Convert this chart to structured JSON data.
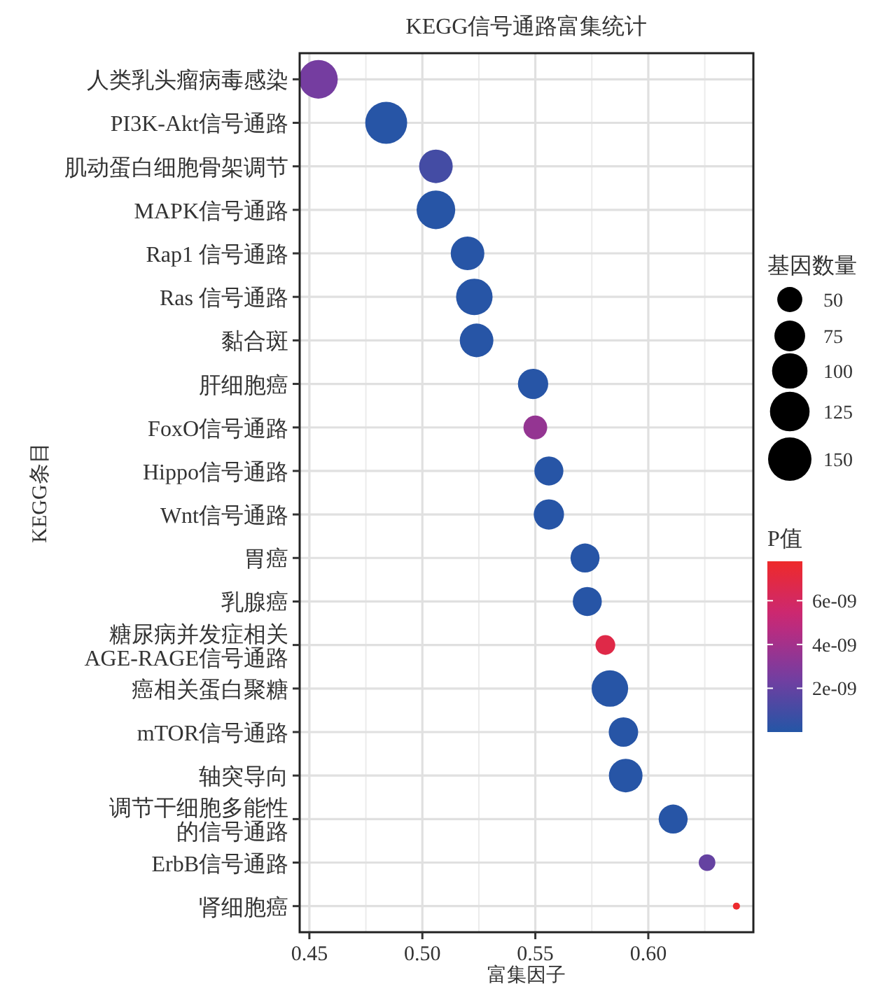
{
  "chart_data": {
    "type": "bubble",
    "orientation": "horizontal",
    "title": "KEGG信号通路富集统计",
    "xlabel": "富集因子",
    "ylabel": "KEGG条目",
    "legend_title": "基因数量",
    "clabel": "P值",
    "grid": true,
    "categories": [
      "人类乳头瘤病毒感染",
      "PI3K-Akt信号通路",
      "肌动蛋白细胞骨架调节",
      "MAPK信号通路",
      "Rap1 信号通路",
      "Ras 信号通路",
      "黏合斑",
      "肝细胞癌",
      "FoxO信号通路",
      "Hippo信号通路",
      "Wnt信号通路",
      "胃癌",
      "乳腺癌",
      "糖尿病并发症相关AGE-RAGE信号通路",
      "癌相关蛋白聚糖",
      "mTOR信号通路",
      "轴突导向",
      "调节干细胞多能性的信号通路",
      "ErbB信号通路",
      "肾细胞癌"
    ],
    "values": [
      0.454,
      0.484,
      0.506,
      0.506,
      0.52,
      0.523,
      0.524,
      0.549,
      0.55,
      0.556,
      0.556,
      0.572,
      0.573,
      0.581,
      0.583,
      0.589,
      0.59,
      0.611,
      0.626,
      0.639
    ],
    "sizes": [
      119,
      140,
      90,
      119,
      90,
      106,
      90,
      73,
      45,
      67,
      73,
      67,
      67,
      31,
      106,
      69,
      90,
      67,
      22,
      4
    ],
    "cvalues": [
      2.5e-09,
      1e-10,
      1e-09,
      1e-10,
      1e-10,
      1e-10,
      1e-10,
      1e-10,
      3.5e-09,
      1e-10,
      1e-10,
      1e-10,
      1e-10,
      6.8e-09,
      1e-10,
      1e-10,
      1e-10,
      1e-10,
      2e-09,
      7.7e-09
    ],
    "size_legend": [
      50,
      75,
      100,
      125,
      150
    ],
    "xlim": [
      0.4457,
      0.6465
    ],
    "xticks": [
      {
        "value": 0.45,
        "label": "0.45"
      },
      {
        "value": 0.5,
        "label": "0.50"
      },
      {
        "value": 0.55,
        "label": "0.55"
      },
      {
        "value": 0.6,
        "label": "0.60"
      }
    ],
    "clim": [
      0,
      7.8e-09
    ],
    "cticks": [
      {
        "value": 2e-09,
        "label": "2e-09"
      },
      {
        "value": 4e-09,
        "label": "4e-09"
      },
      {
        "value": 6e-09,
        "label": "6e-09"
      }
    ]
  }
}
